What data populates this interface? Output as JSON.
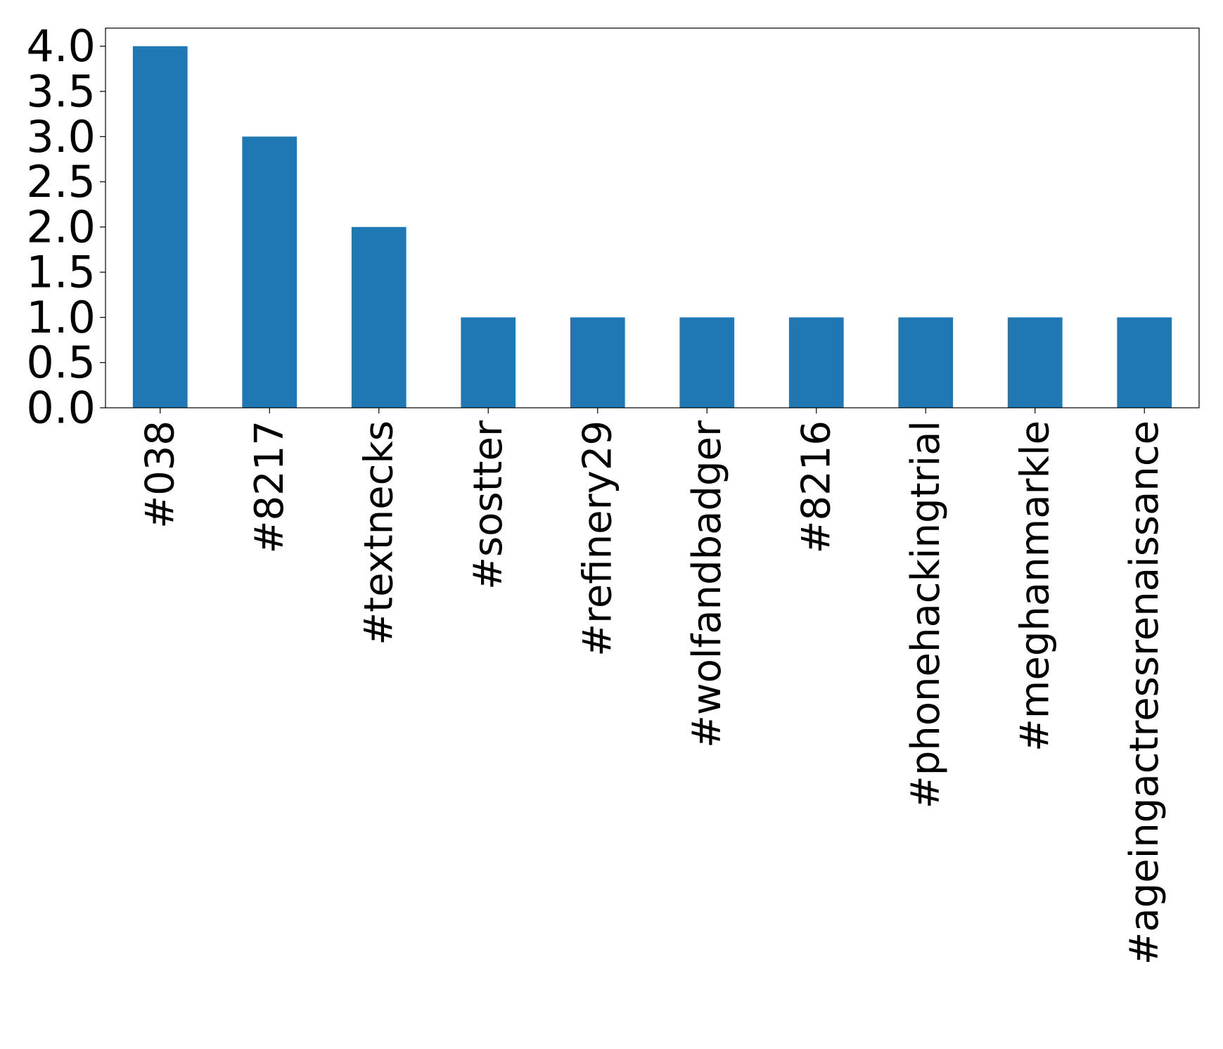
{
  "chart_data": {
    "type": "bar",
    "title": "",
    "xlabel": "",
    "ylabel": "",
    "categories": [
      "#038",
      "#8217",
      "#textnecks",
      "#sostter",
      "#refinery29",
      "#wolfandbadger",
      "#8216",
      "#phonehackingtrial",
      "#meghanmarkle",
      "#ageingactressrenaissance"
    ],
    "values": [
      4,
      3,
      2,
      1,
      1,
      1,
      1,
      1,
      1,
      1
    ],
    "ylim": [
      0,
      4.2
    ],
    "yticks": [
      "0.0",
      "0.5",
      "1.0",
      "1.5",
      "2.0",
      "2.5",
      "3.0",
      "3.5",
      "4.0"
    ],
    "bar_color": "#1f77b4",
    "grid": false,
    "legend": "none"
  }
}
